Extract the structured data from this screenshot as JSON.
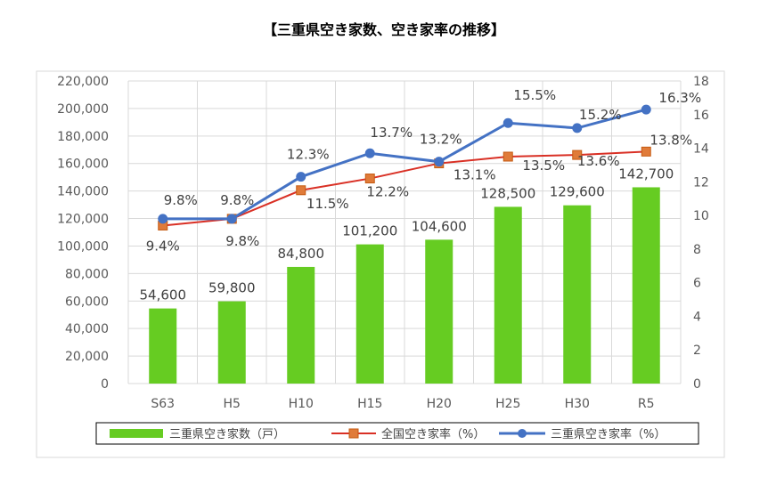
{
  "chart_data": {
    "type": "bar",
    "title": "【三重県空き家数、空き家率の推移】",
    "categories": [
      "S63",
      "H5",
      "H10",
      "H15",
      "H20",
      "H25",
      "H30",
      "R5"
    ],
    "y_left": {
      "ylim": [
        0,
        220000
      ],
      "ticks": [
        "0",
        "20,000",
        "40,000",
        "60,000",
        "80,000",
        "100,000",
        "120,000",
        "140,000",
        "160,000",
        "180,000",
        "200,000",
        "220,000"
      ]
    },
    "y_right": {
      "ylim": [
        0,
        18
      ],
      "ticks": [
        "0",
        "2",
        "4",
        "6",
        "8",
        "10",
        "12",
        "14",
        "16",
        "18"
      ]
    },
    "series": [
      {
        "name": "三重県空き家数（戸）",
        "type": "bar",
        "axis": "left",
        "color": "#66CC22",
        "values": [
          54600,
          59800,
          84800,
          101200,
          104600,
          128500,
          129600,
          142700
        ],
        "labels": [
          "54,600",
          "59,800",
          "84,800",
          "101,200",
          "104,600",
          "128,500",
          "129,600",
          "142,700"
        ]
      },
      {
        "name": "全国空き家率（%）",
        "type": "line",
        "axis": "right",
        "color": "#D93025",
        "marker_color": "#E07B39",
        "values": [
          9.4,
          9.8,
          11.5,
          12.2,
          13.1,
          13.5,
          13.6,
          13.8
        ],
        "labels": [
          "9.4%",
          "9.8%",
          "11.5%",
          "12.2%",
          "13.1%",
          "13.5%",
          "13.6%",
          "13.8%"
        ]
      },
      {
        "name": "三重県空き家率（%）",
        "type": "line",
        "axis": "right",
        "color": "#4472C4",
        "values": [
          9.8,
          9.8,
          12.3,
          13.7,
          13.2,
          15.5,
          15.2,
          16.3
        ],
        "labels": [
          "9.8%",
          "9.8%",
          "12.3%",
          "13.7%",
          "13.2%",
          "15.5%",
          "15.2%",
          "16.3%"
        ]
      }
    ],
    "grid": true,
    "legend": "bottom"
  }
}
